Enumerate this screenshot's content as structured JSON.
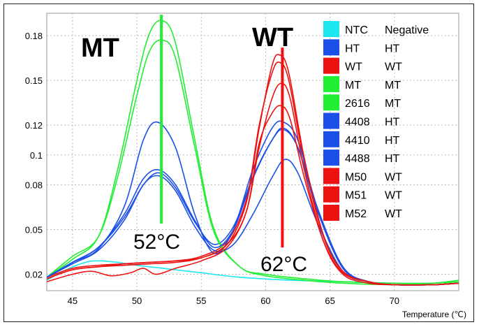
{
  "chart_data": {
    "type": "line",
    "xlabel": "Temperature (℃)",
    "ylabel": "",
    "xlim": [
      43,
      75
    ],
    "ylim": [
      0.009,
      0.195
    ],
    "x_ticks": [
      45,
      50,
      55,
      60,
      65,
      70
    ],
    "y_ticks": [
      0.02,
      0.05,
      0.08,
      0.1,
      0.12,
      0.15,
      0.18
    ],
    "y_tick_labels": [
      "0.02",
      "0.05",
      "0.08",
      "0.1",
      "0.12",
      "0.15",
      "0.18"
    ],
    "grid": true,
    "legend_position": "top-right",
    "annotations": {
      "mt_label": "MT",
      "wt_label": "WT",
      "mt_peak_temp": "52°C",
      "wt_peak_temp": "62°C",
      "mt_marker_x": 51.9,
      "wt_marker_x": 61.3
    },
    "legend": [
      {
        "sample": "NTC",
        "genotype": "Negative",
        "color": "#1ee6f0"
      },
      {
        "sample": "HT",
        "genotype": "HT",
        "color": "#1a4fe8"
      },
      {
        "sample": "WT",
        "genotype": "WT",
        "color": "#ee1111"
      },
      {
        "sample": "MT",
        "genotype": "MT",
        "color": "#22ee33"
      },
      {
        "sample": "2616",
        "genotype": "MT",
        "color": "#22ee33"
      },
      {
        "sample": "4408",
        "genotype": "HT",
        "color": "#1a4fe8"
      },
      {
        "sample": "4410",
        "genotype": "HT",
        "color": "#1a4fe8"
      },
      {
        "sample": "4488",
        "genotype": "HT",
        "color": "#1a4fe8"
      },
      {
        "sample": "M50",
        "genotype": "WT",
        "color": "#ee1111"
      },
      {
        "sample": "M51",
        "genotype": "WT",
        "color": "#ee1111"
      },
      {
        "sample": "M52",
        "genotype": "WT",
        "color": "#ee1111"
      }
    ],
    "series": [
      {
        "name": "NTC",
        "color": "#1ee6f0",
        "x": [
          43,
          44.5,
          46,
          47,
          48.5,
          50,
          52,
          55,
          58,
          62,
          66,
          70,
          73,
          75
        ],
        "y": [
          0.016,
          0.023,
          0.028,
          0.029,
          0.028,
          0.026,
          0.024,
          0.021,
          0.018,
          0.016,
          0.015,
          0.014,
          0.014,
          0.015
        ]
      },
      {
        "name": "HT",
        "color": "#1a4fe8",
        "x": [
          43,
          45,
          47,
          49,
          50.5,
          51.7,
          53,
          54.5,
          56,
          57.5,
          59,
          60.5,
          61.4,
          62.5,
          64,
          66,
          68,
          70,
          73,
          75
        ],
        "y": [
          0.018,
          0.028,
          0.038,
          0.058,
          0.08,
          0.088,
          0.078,
          0.055,
          0.04,
          0.052,
          0.085,
          0.11,
          0.117,
          0.105,
          0.065,
          0.025,
          0.015,
          0.013,
          0.013,
          0.014
        ]
      },
      {
        "name": "WT",
        "color": "#ee1111",
        "x": [
          43,
          45,
          47,
          49,
          51,
          53,
          55,
          57,
          58.5,
          59.5,
          60.5,
          61.1,
          61.8,
          63,
          64.5,
          66,
          68,
          70,
          73,
          75
        ],
        "y": [
          0.018,
          0.024,
          0.026,
          0.027,
          0.028,
          0.029,
          0.032,
          0.042,
          0.07,
          0.12,
          0.155,
          0.162,
          0.15,
          0.095,
          0.045,
          0.022,
          0.015,
          0.013,
          0.013,
          0.014
        ]
      },
      {
        "name": "MT",
        "color": "#22ee33",
        "x": [
          43,
          45,
          47,
          48.5,
          50,
          51,
          52,
          53,
          54.5,
          56,
          58,
          60,
          63,
          66,
          70,
          73,
          75
        ],
        "y": [
          0.018,
          0.03,
          0.045,
          0.09,
          0.15,
          0.182,
          0.19,
          0.175,
          0.11,
          0.05,
          0.025,
          0.02,
          0.017,
          0.015,
          0.014,
          0.014,
          0.015
        ]
      },
      {
        "name": "2616",
        "color": "#22ee33",
        "x": [
          43,
          45,
          47,
          48.5,
          50,
          51,
          52,
          53,
          54.5,
          56,
          58,
          60,
          63,
          66,
          70,
          73,
          75
        ],
        "y": [
          0.018,
          0.032,
          0.045,
          0.085,
          0.14,
          0.17,
          0.177,
          0.165,
          0.105,
          0.048,
          0.025,
          0.019,
          0.016,
          0.014,
          0.013,
          0.014,
          0.016
        ]
      },
      {
        "name": "4408",
        "color": "#1a4fe8",
        "x": [
          43,
          45,
          47,
          49,
          50.5,
          51.6,
          53,
          54.5,
          56,
          57.5,
          59,
          60.5,
          61.4,
          62.5,
          64,
          66,
          68,
          70,
          73,
          75
        ],
        "y": [
          0.018,
          0.028,
          0.037,
          0.065,
          0.11,
          0.122,
          0.105,
          0.06,
          0.034,
          0.05,
          0.09,
          0.118,
          0.122,
          0.11,
          0.065,
          0.025,
          0.015,
          0.013,
          0.013,
          0.014
        ]
      },
      {
        "name": "4410",
        "color": "#1a4fe8",
        "x": [
          43,
          45,
          47,
          49,
          50.5,
          51.7,
          53,
          54.5,
          56,
          57.5,
          59,
          60.5,
          61.4,
          62.5,
          64,
          66,
          68,
          70,
          73,
          75
        ],
        "y": [
          0.018,
          0.028,
          0.038,
          0.06,
          0.084,
          0.09,
          0.08,
          0.056,
          0.038,
          0.05,
          0.084,
          0.11,
          0.118,
          0.105,
          0.063,
          0.024,
          0.015,
          0.013,
          0.013,
          0.014
        ]
      },
      {
        "name": "4488",
        "color": "#1a4fe8",
        "x": [
          43,
          45,
          47,
          49,
          50.5,
          51.7,
          53,
          54.5,
          56,
          57.5,
          59,
          60.5,
          61.5,
          62.5,
          64,
          66,
          68,
          70,
          73,
          75
        ],
        "y": [
          0.018,
          0.027,
          0.036,
          0.056,
          0.08,
          0.086,
          0.076,
          0.052,
          0.036,
          0.04,
          0.06,
          0.085,
          0.097,
          0.088,
          0.055,
          0.022,
          0.015,
          0.013,
          0.013,
          0.014
        ]
      },
      {
        "name": "M50",
        "color": "#ee1111",
        "x": [
          43,
          45,
          47,
          49,
          51,
          53,
          55,
          57,
          58.5,
          59.5,
          60.5,
          61.1,
          61.8,
          63,
          64.5,
          66,
          68,
          70,
          73,
          75
        ],
        "y": [
          0.017,
          0.023,
          0.025,
          0.026,
          0.027,
          0.028,
          0.031,
          0.04,
          0.068,
          0.118,
          0.16,
          0.167,
          0.155,
          0.098,
          0.046,
          0.022,
          0.015,
          0.013,
          0.013,
          0.014
        ]
      },
      {
        "name": "M51",
        "color": "#ee1111",
        "x": [
          43,
          45,
          46.5,
          48,
          49.5,
          50.5,
          51.5,
          53,
          55,
          57,
          58.5,
          59.5,
          60.5,
          61.2,
          61.9,
          63,
          64.5,
          66,
          68,
          70,
          73,
          75
        ],
        "y": [
          0.015,
          0.02,
          0.022,
          0.019,
          0.021,
          0.024,
          0.02,
          0.024,
          0.029,
          0.038,
          0.062,
          0.105,
          0.138,
          0.148,
          0.138,
          0.09,
          0.042,
          0.02,
          0.014,
          0.013,
          0.013,
          0.014
        ]
      },
      {
        "name": "M52",
        "color": "#ee1111",
        "x": [
          43,
          45,
          47,
          49,
          51,
          53,
          55,
          57,
          58.5,
          59.5,
          60.5,
          61.2,
          61.9,
          63,
          64.5,
          66,
          68,
          70,
          73,
          75
        ],
        "y": [
          0.017,
          0.023,
          0.025,
          0.027,
          0.028,
          0.029,
          0.031,
          0.04,
          0.062,
          0.108,
          0.128,
          0.133,
          0.124,
          0.085,
          0.042,
          0.021,
          0.015,
          0.013,
          0.013,
          0.014
        ]
      }
    ]
  }
}
